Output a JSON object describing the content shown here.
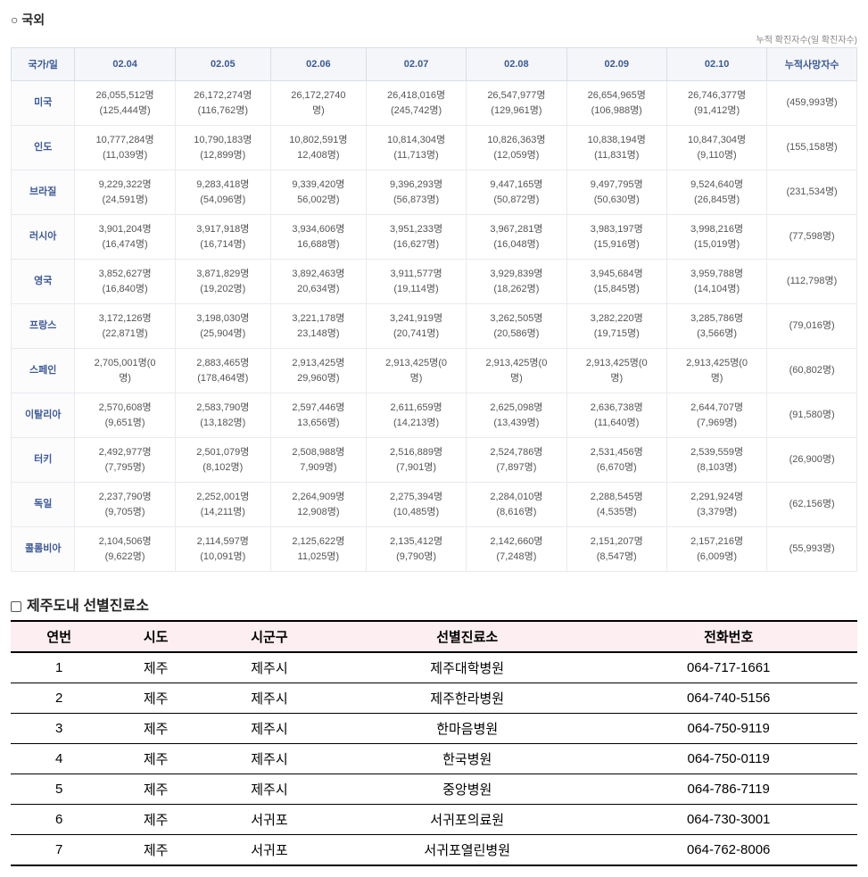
{
  "section1": {
    "title": "○ 국외",
    "subtitle": "누적 확진자수(일 확진자수)",
    "headers": [
      "국가/일",
      "02.04",
      "02.05",
      "02.06",
      "02.07",
      "02.08",
      "02.09",
      "02.10",
      "누적사망자수"
    ],
    "rows": [
      {
        "country": "미국",
        "cells": [
          {
            "m": "26,055,512명",
            "s": "(125,444명)"
          },
          {
            "m": "26,172,274명",
            "s": "(116,762명)"
          },
          {
            "m": "26,172,2740",
            "s": "명)"
          },
          {
            "m": "26,418,016명",
            "s": "(245,742명)"
          },
          {
            "m": "26,547,977명",
            "s": "(129,961명)"
          },
          {
            "m": "26,654,965명",
            "s": "(106,988명)"
          },
          {
            "m": "26,746,377명",
            "s": "(91,412명)"
          }
        ],
        "deaths": "(459,993명)"
      },
      {
        "country": "인도",
        "cells": [
          {
            "m": "10,777,284명",
            "s": "(11,039명)"
          },
          {
            "m": "10,790,183명",
            "s": "(12,899명)"
          },
          {
            "m": "10,802,591명",
            "s": "12,408명)"
          },
          {
            "m": "10,814,304명",
            "s": "(11,713명)"
          },
          {
            "m": "10,826,363명",
            "s": "(12,059명)"
          },
          {
            "m": "10,838,194명",
            "s": "(11,831명)"
          },
          {
            "m": "10,847,304명",
            "s": "(9,110명)"
          }
        ],
        "deaths": "(155,158명)"
      },
      {
        "country": "브라질",
        "cells": [
          {
            "m": "9,229,322명",
            "s": "(24,591명)"
          },
          {
            "m": "9,283,418명",
            "s": "(54,096명)"
          },
          {
            "m": "9,339,420명",
            "s": "56,002명)"
          },
          {
            "m": "9,396,293명",
            "s": "(56,873명)"
          },
          {
            "m": "9,447,165명",
            "s": "(50,872명)"
          },
          {
            "m": "9,497,795명",
            "s": "(50,630명)"
          },
          {
            "m": "9,524,640명",
            "s": "(26,845명)"
          }
        ],
        "deaths": "(231,534명)"
      },
      {
        "country": "러시아",
        "cells": [
          {
            "m": "3,901,204명",
            "s": "(16,474명)"
          },
          {
            "m": "3,917,918명",
            "s": "(16,714명)"
          },
          {
            "m": "3,934,606명",
            "s": "16,688명)"
          },
          {
            "m": "3,951,233명",
            "s": "(16,627명)"
          },
          {
            "m": "3,967,281명",
            "s": "(16,048명)"
          },
          {
            "m": "3,983,197명",
            "s": "(15,916명)"
          },
          {
            "m": "3,998,216명",
            "s": "(15,019명)"
          }
        ],
        "deaths": "(77,598명)"
      },
      {
        "country": "영국",
        "cells": [
          {
            "m": "3,852,627명",
            "s": "(16,840명)"
          },
          {
            "m": "3,871,829명",
            "s": "(19,202명)"
          },
          {
            "m": "3,892,463명",
            "s": "20,634명)"
          },
          {
            "m": "3,911,577명",
            "s": "(19,114명)"
          },
          {
            "m": "3,929,839명",
            "s": "(18,262명)"
          },
          {
            "m": "3,945,684명",
            "s": "(15,845명)"
          },
          {
            "m": "3,959,788명",
            "s": "(14,104명)"
          }
        ],
        "deaths": "(112,798명)"
      },
      {
        "country": "프랑스",
        "cells": [
          {
            "m": "3,172,126명",
            "s": "(22,871명)"
          },
          {
            "m": "3,198,030명",
            "s": "(25,904명)"
          },
          {
            "m": "3,221,178명",
            "s": "23,148명)"
          },
          {
            "m": "3,241,919명",
            "s": "(20,741명)"
          },
          {
            "m": "3,262,505명",
            "s": "(20,586명)"
          },
          {
            "m": "3,282,220명",
            "s": "(19,715명)"
          },
          {
            "m": "3,285,786명",
            "s": "(3,566명)"
          }
        ],
        "deaths": "(79,016명)"
      },
      {
        "country": "스페인",
        "cells": [
          {
            "m": "2,705,001명(0",
            "s": "명)"
          },
          {
            "m": "2,883,465명",
            "s": "(178,464명)"
          },
          {
            "m": "2,913,425명",
            "s": "29,960명)"
          },
          {
            "m": "2,913,425명(0",
            "s": "명)"
          },
          {
            "m": "2,913,425명(0",
            "s": "명)"
          },
          {
            "m": "2,913,425명(0",
            "s": "명)"
          },
          {
            "m": "2,913,425명(0",
            "s": "명)"
          }
        ],
        "deaths": "(60,802명)"
      },
      {
        "country": "이탈리아",
        "cells": [
          {
            "m": "2,570,608명",
            "s": "(9,651명)"
          },
          {
            "m": "2,583,790명",
            "s": "(13,182명)"
          },
          {
            "m": "2,597,446명",
            "s": "13,656명)"
          },
          {
            "m": "2,611,659명",
            "s": "(14,213명)"
          },
          {
            "m": "2,625,098명",
            "s": "(13,439명)"
          },
          {
            "m": "2,636,738명",
            "s": "(11,640명)"
          },
          {
            "m": "2,644,707명",
            "s": "(7,969명)"
          }
        ],
        "deaths": "(91,580명)"
      },
      {
        "country": "터키",
        "cells": [
          {
            "m": "2,492,977명",
            "s": "(7,795명)"
          },
          {
            "m": "2,501,079명",
            "s": "(8,102명)"
          },
          {
            "m": "2,508,988명",
            "s": "7,909명)"
          },
          {
            "m": "2,516,889명",
            "s": "(7,901명)"
          },
          {
            "m": "2,524,786명",
            "s": "(7,897명)"
          },
          {
            "m": "2,531,456명",
            "s": "(6,670명)"
          },
          {
            "m": "2,539,559명",
            "s": "(8,103명)"
          }
        ],
        "deaths": "(26,900명)"
      },
      {
        "country": "독일",
        "cells": [
          {
            "m": "2,237,790명",
            "s": "(9,705명)"
          },
          {
            "m": "2,252,001명",
            "s": "(14,211명)"
          },
          {
            "m": "2,264,909명",
            "s": "12,908명)"
          },
          {
            "m": "2,275,394명",
            "s": "(10,485명)"
          },
          {
            "m": "2,284,010명",
            "s": "(8,616명)"
          },
          {
            "m": "2,288,545명",
            "s": "(4,535명)"
          },
          {
            "m": "2,291,924명",
            "s": "(3,379명)"
          }
        ],
        "deaths": "(62,156명)"
      },
      {
        "country": "콜롬비아",
        "cells": [
          {
            "m": "2,104,506명",
            "s": "(9,622명)"
          },
          {
            "m": "2,114,597명",
            "s": "(10,091명)"
          },
          {
            "m": "2,125,622명",
            "s": "11,025명)"
          },
          {
            "m": "2,135,412명",
            "s": "(9,790명)"
          },
          {
            "m": "2,142,660명",
            "s": "(7,248명)"
          },
          {
            "m": "2,151,207명",
            "s": "(8,547명)"
          },
          {
            "m": "2,157,216명",
            "s": "(6,009명)"
          }
        ],
        "deaths": "(55,993명)"
      }
    ]
  },
  "section2": {
    "title": "제주도내 선별진료소",
    "headers": [
      "연번",
      "시도",
      "시군구",
      "선별진료소",
      "전화번호"
    ],
    "rows": [
      [
        "1",
        "제주",
        "제주시",
        "제주대학병원",
        "064-717-1661"
      ],
      [
        "2",
        "제주",
        "제주시",
        "제주한라병원",
        "064-740-5156"
      ],
      [
        "3",
        "제주",
        "제주시",
        "한마음병원",
        "064-750-9119"
      ],
      [
        "4",
        "제주",
        "제주시",
        "한국병원",
        "064-750-0119"
      ],
      [
        "5",
        "제주",
        "제주시",
        "중앙병원",
        "064-786-7119"
      ],
      [
        "6",
        "제주",
        "서귀포",
        "서귀포의료원",
        "064-730-3001"
      ],
      [
        "7",
        "제주",
        "서귀포",
        "서귀포열린병원",
        "064-762-8006"
      ]
    ]
  }
}
